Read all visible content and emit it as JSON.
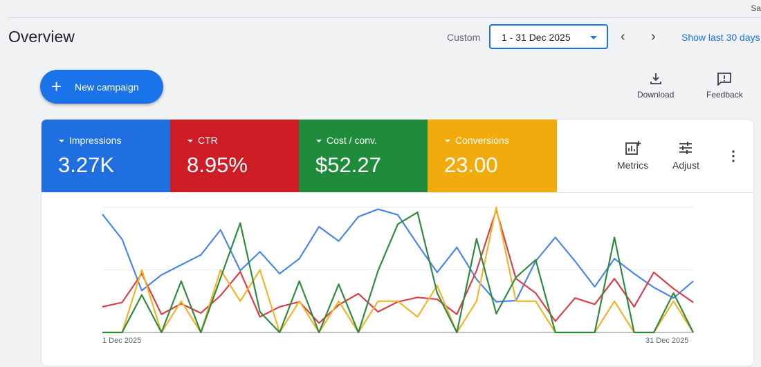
{
  "header": {
    "save_label": "Sav",
    "title": "Overview",
    "range_type": "Custom",
    "date_range": "1 - 31 Dec 2025",
    "show_last": "Show last 30 days"
  },
  "actions": {
    "new_campaign": "New campaign",
    "download": "Download",
    "feedback": "Feedback"
  },
  "metrics": [
    {
      "name": "Impressions",
      "value": "3.27K",
      "color": "#1f6fe0"
    },
    {
      "name": "CTR",
      "value": "8.95%",
      "color": "#cf1d26"
    },
    {
      "name": "Cost / conv.",
      "value": "$52.27",
      "color": "#1e8c3a"
    },
    {
      "name": "Conversions",
      "value": "23.00",
      "color": "#f1ab0c"
    }
  ],
  "controls": {
    "metrics": "Metrics",
    "adjust": "Adjust"
  },
  "chart_data": {
    "type": "line",
    "x_start_label": "1 Dec 2025",
    "x_end_label": "31 Dec 2025",
    "x": [
      1,
      2,
      3,
      4,
      5,
      6,
      7,
      8,
      9,
      10,
      11,
      12,
      13,
      14,
      15,
      16,
      17,
      18,
      19,
      20,
      21,
      22,
      23,
      24,
      25,
      26,
      27,
      28,
      29,
      30,
      31
    ],
    "ylim": [
      0,
      2
    ],
    "grid": true,
    "note": "values normalized per series (no y-axis labels shown)",
    "series": [
      {
        "name": "Impressions",
        "color": "#4a86ea",
        "values": [
          1.89,
          1.49,
          0.67,
          0.92,
          1.08,
          1.24,
          1.64,
          0.99,
          1.29,
          0.94,
          1.18,
          1.69,
          1.46,
          1.85,
          1.97,
          1.88,
          1.41,
          0.96,
          1.36,
          0.85,
          0.49,
          0.51,
          1.14,
          1.52,
          1.14,
          0.73,
          1.18,
          0.94,
          0.72,
          0.55,
          0.82
        ]
      },
      {
        "name": "CTR",
        "color": "#d6404a",
        "values": [
          0.41,
          0.48,
          0.94,
          0.29,
          0.46,
          0.31,
          0.59,
          0.97,
          0.25,
          0.41,
          0.49,
          0.15,
          0.44,
          0.62,
          0.33,
          0.49,
          0.56,
          0.53,
          0.29,
          0.99,
          1.96,
          0.86,
          0.63,
          0.18,
          0.55,
          0.45,
          0.86,
          0.41,
          0.96,
          0.7,
          0.48
        ]
      },
      {
        "name": "Conversions",
        "color": "#f2b42a",
        "values": [
          0,
          0,
          1,
          0,
          0.5,
          0,
          1,
          0.5,
          1,
          0,
          0.5,
          0,
          0.5,
          0,
          0.5,
          0.5,
          0.25,
          0.75,
          0,
          0.5,
          2,
          0.5,
          0.5,
          0,
          0,
          0,
          0.5,
          0,
          0,
          0.5,
          0
        ]
      },
      {
        "name": "Cost / conv.",
        "color": "#2f8a3f",
        "values": [
          0,
          0,
          0.6,
          0,
          0.82,
          0,
          0.87,
          1.75,
          0.33,
          0,
          0.82,
          0,
          0.77,
          0,
          0.99,
          1.73,
          1.92,
          0.63,
          0,
          1.5,
          0.3,
          0.88,
          1.16,
          0,
          0,
          0,
          1.52,
          0,
          0,
          0.63,
          0
        ]
      }
    ]
  }
}
